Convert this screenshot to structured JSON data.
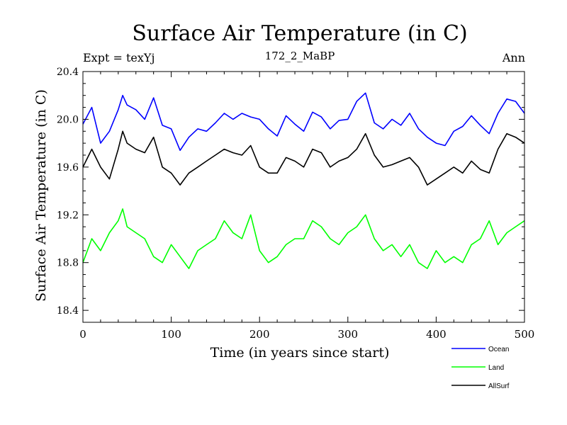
{
  "chart_data": {
    "type": "line",
    "title": "Surface Air Temperature (in C)",
    "subtitle_left": "Expt = texYj",
    "subtitle_center": "172_2_MaBP",
    "subtitle_right": "Ann",
    "xlabel": "Time (in years since start)",
    "ylabel": "Surface Air Temperature (in C)",
    "xlim": [
      0,
      500
    ],
    "ylim": [
      18.3,
      20.4
    ],
    "xticks": [
      0,
      100,
      200,
      300,
      400,
      500
    ],
    "yticks": [
      18.4,
      18.8,
      19.2,
      19.6,
      20.0,
      20.4
    ],
    "ytick_labels": [
      "18.4",
      "18.8",
      "19.2",
      "19.6",
      "20.0",
      "20.4"
    ],
    "grid": false,
    "legend_position": "bottom-right",
    "series": [
      {
        "name": "Ocean",
        "color": "#0000ff",
        "x": [
          0,
          10,
          20,
          30,
          40,
          45,
          50,
          60,
          70,
          80,
          90,
          100,
          110,
          120,
          130,
          140,
          150,
          160,
          170,
          180,
          190,
          200,
          210,
          220,
          230,
          240,
          250,
          260,
          270,
          280,
          290,
          300,
          310,
          320,
          330,
          340,
          350,
          360,
          370,
          380,
          390,
          400,
          410,
          420,
          430,
          440,
          450,
          460,
          470,
          480,
          490,
          500
        ],
        "values": [
          19.96,
          20.1,
          19.8,
          19.9,
          20.08,
          20.2,
          20.12,
          20.08,
          20.0,
          20.18,
          19.95,
          19.92,
          19.74,
          19.85,
          19.92,
          19.9,
          19.97,
          20.05,
          20.0,
          20.05,
          20.02,
          20.0,
          19.92,
          19.86,
          20.03,
          19.96,
          19.9,
          20.06,
          20.02,
          19.92,
          19.99,
          20.0,
          20.15,
          20.22,
          19.97,
          19.92,
          20.0,
          19.95,
          20.05,
          19.92,
          19.85,
          19.8,
          19.78,
          19.9,
          19.94,
          20.03,
          19.95,
          19.88,
          20.05,
          20.17,
          20.15,
          20.05
        ]
      },
      {
        "name": "Land",
        "color": "#00ff00",
        "x": [
          0,
          10,
          20,
          30,
          40,
          45,
          50,
          60,
          70,
          80,
          90,
          100,
          110,
          120,
          130,
          140,
          150,
          160,
          170,
          180,
          190,
          200,
          210,
          220,
          230,
          240,
          250,
          260,
          270,
          280,
          290,
          300,
          310,
          320,
          330,
          340,
          350,
          360,
          370,
          380,
          390,
          400,
          410,
          420,
          430,
          440,
          450,
          460,
          470,
          480,
          490,
          500
        ],
        "values": [
          18.8,
          19.0,
          18.9,
          19.05,
          19.15,
          19.25,
          19.1,
          19.05,
          19.0,
          18.85,
          18.8,
          18.95,
          18.85,
          18.75,
          18.9,
          18.95,
          19.0,
          19.15,
          19.05,
          19.0,
          19.2,
          18.9,
          18.8,
          18.85,
          18.95,
          19.0,
          19.0,
          19.15,
          19.1,
          19.0,
          18.95,
          19.05,
          19.1,
          19.2,
          19.0,
          18.9,
          18.95,
          18.85,
          18.95,
          18.8,
          18.75,
          18.9,
          18.8,
          18.85,
          18.8,
          18.95,
          19.0,
          19.15,
          18.95,
          19.05,
          19.1,
          19.15
        ]
      },
      {
        "name": "AllSurf",
        "color": "#000000",
        "x": [
          0,
          10,
          20,
          30,
          40,
          45,
          50,
          60,
          70,
          80,
          90,
          100,
          110,
          120,
          130,
          140,
          150,
          160,
          170,
          180,
          190,
          200,
          210,
          220,
          230,
          240,
          250,
          260,
          270,
          280,
          290,
          300,
          310,
          320,
          330,
          340,
          350,
          360,
          370,
          380,
          390,
          400,
          410,
          420,
          430,
          440,
          450,
          460,
          470,
          480,
          490,
          500
        ],
        "values": [
          19.6,
          19.75,
          19.6,
          19.5,
          19.75,
          19.9,
          19.8,
          19.75,
          19.72,
          19.85,
          19.6,
          19.55,
          19.45,
          19.55,
          19.6,
          19.65,
          19.7,
          19.75,
          19.72,
          19.7,
          19.78,
          19.6,
          19.55,
          19.55,
          19.68,
          19.65,
          19.6,
          19.75,
          19.72,
          19.6,
          19.65,
          19.68,
          19.75,
          19.88,
          19.7,
          19.6,
          19.62,
          19.65,
          19.68,
          19.6,
          19.45,
          19.5,
          19.55,
          19.6,
          19.55,
          19.65,
          19.58,
          19.55,
          19.75,
          19.88,
          19.85,
          19.8
        ]
      }
    ]
  }
}
